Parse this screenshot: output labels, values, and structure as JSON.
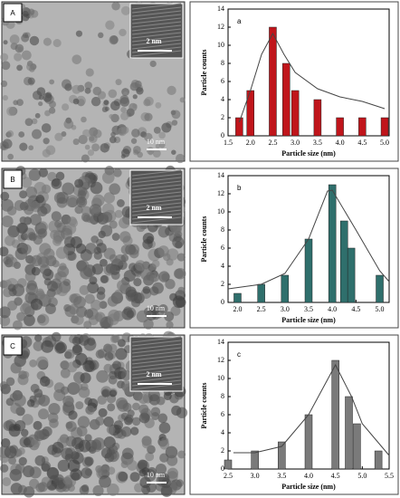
{
  "panels": [
    {
      "label": "A",
      "inset_scale": "2 nm",
      "scale": "10 nm"
    },
    {
      "label": "B",
      "inset_scale": "2 nm",
      "scale": "10 nm"
    },
    {
      "label": "C",
      "inset_scale": "2 nm",
      "scale": "10 nm"
    }
  ],
  "chart_data": [
    {
      "type": "bar",
      "annotation": "a",
      "xlabel": "Particle size (nm)",
      "ylabel": "Particle counts",
      "color": "#c0151b",
      "x": [
        1.75,
        2.0,
        2.5,
        2.8,
        3.0,
        3.5,
        4.0,
        4.5,
        5.0
      ],
      "values": [
        2,
        5,
        12,
        8,
        5,
        4,
        2,
        2,
        2
      ],
      "fit_x": [
        1.75,
        2.0,
        2.25,
        2.5,
        2.75,
        3.0,
        3.5,
        4.0,
        4.5,
        5.0
      ],
      "fit_values": [
        1.5,
        5,
        9,
        11.3,
        9,
        7,
        5.2,
        4.3,
        3.8,
        3
      ],
      "xlim": [
        1.5,
        5.1
      ],
      "xticks": [
        1.5,
        {
          "value": 2,
          "label": "2.0"
        },
        2.5,
        {
          "value": 3,
          "label": "3.0"
        },
        3.5,
        {
          "value": 4,
          "label": "4.0"
        },
        4.5,
        {
          "value": 5,
          "label": "5.0"
        }
      ],
      "ylim": [
        0,
        14
      ],
      "yticks": [
        0,
        2,
        4,
        6,
        8,
        10,
        12,
        14
      ]
    },
    {
      "type": "bar",
      "annotation": "b",
      "xlabel": "Particle size (nm)",
      "ylabel": "Particle counts",
      "color": "#2f6f6c",
      "x": [
        2.0,
        2.5,
        3.0,
        3.5,
        4.0,
        4.25,
        4.4,
        5.0
      ],
      "values": [
        1,
        2,
        3,
        7,
        13,
        9,
        6,
        3
      ],
      "fit_x": [
        1.8,
        2.5,
        3.0,
        3.5,
        3.9,
        4.0,
        4.5,
        5.0,
        5.2
      ],
      "fit_values": [
        1.5,
        2,
        3.2,
        7,
        12.3,
        12.4,
        8,
        3.5,
        2.3
      ],
      "xlim": [
        1.8,
        5.2
      ],
      "xticks": [
        {
          "value": 2,
          "label": "2.0"
        },
        2.5,
        {
          "value": 3,
          "label": "3.0"
        },
        3.5,
        {
          "value": 4,
          "label": "4.0"
        },
        4.5,
        {
          "value": 5,
          "label": "5.0"
        }
      ],
      "ylim": [
        0,
        14
      ],
      "yticks": [
        0,
        2,
        4,
        6,
        8,
        10,
        12,
        14
      ]
    },
    {
      "type": "bar",
      "annotation": "c",
      "xlabel": "Particle size (nm)",
      "ylabel": "Particle counts",
      "color": "#7a7a7a",
      "x": [
        2.5,
        3.0,
        3.5,
        4.0,
        4.5,
        4.75,
        4.9,
        5.3
      ],
      "values": [
        1,
        2,
        3,
        6,
        12,
        8,
        5,
        2
      ],
      "fit_x": [
        2.6,
        3.0,
        3.5,
        4.0,
        4.5,
        4.8,
        5.0,
        5.5
      ],
      "fit_values": [
        1.8,
        1.8,
        2.5,
        6,
        11.5,
        8,
        5,
        1.5
      ],
      "xlim": [
        2.5,
        5.5
      ],
      "xticks": [
        2.5,
        {
          "value": 3,
          "label": "3.0"
        },
        3.5,
        {
          "value": 4,
          "label": "4.0"
        },
        4.5,
        {
          "value": 5,
          "label": "5.0"
        },
        5.5
      ],
      "ylim": [
        0,
        14
      ],
      "yticks": [
        0,
        2,
        4,
        6,
        8,
        10,
        12,
        14
      ]
    }
  ]
}
